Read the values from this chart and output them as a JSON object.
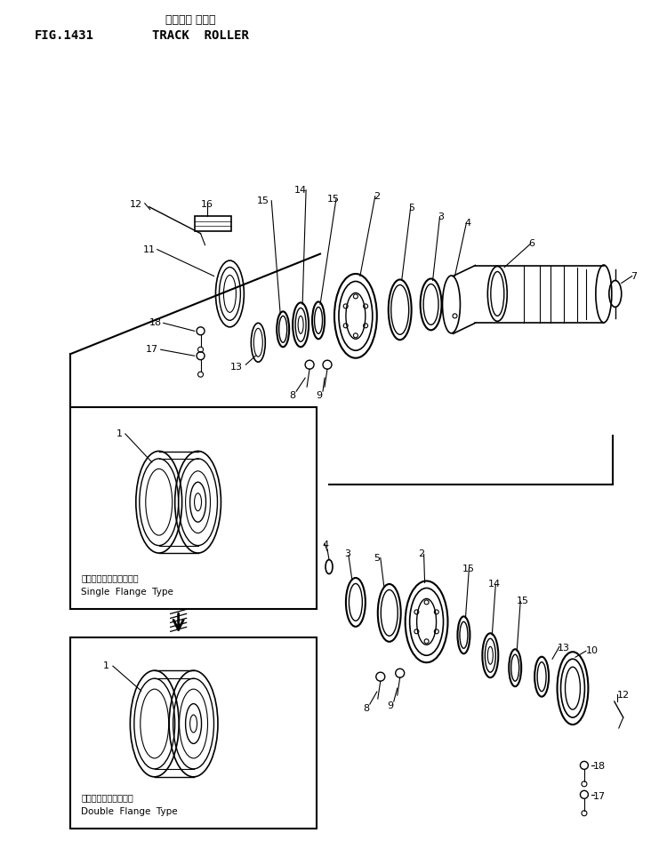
{
  "title_japanese": "トラック ローラ",
  "title_fig": "FIG.1431",
  "title_english": "TRACK  ROLLER",
  "bg_color": "#ffffff",
  "line_color": "#000000",
  "fig_size": [
    7.41,
    9.55
  ],
  "dpi": 100,
  "single_flange_label_jp": "シングルフランジタイプ",
  "single_flange_label_en": "Single  Flange  Type",
  "double_flange_label_jp": "ダブルフランジタイプ",
  "double_flange_label_en": "Double  Flange  Type"
}
